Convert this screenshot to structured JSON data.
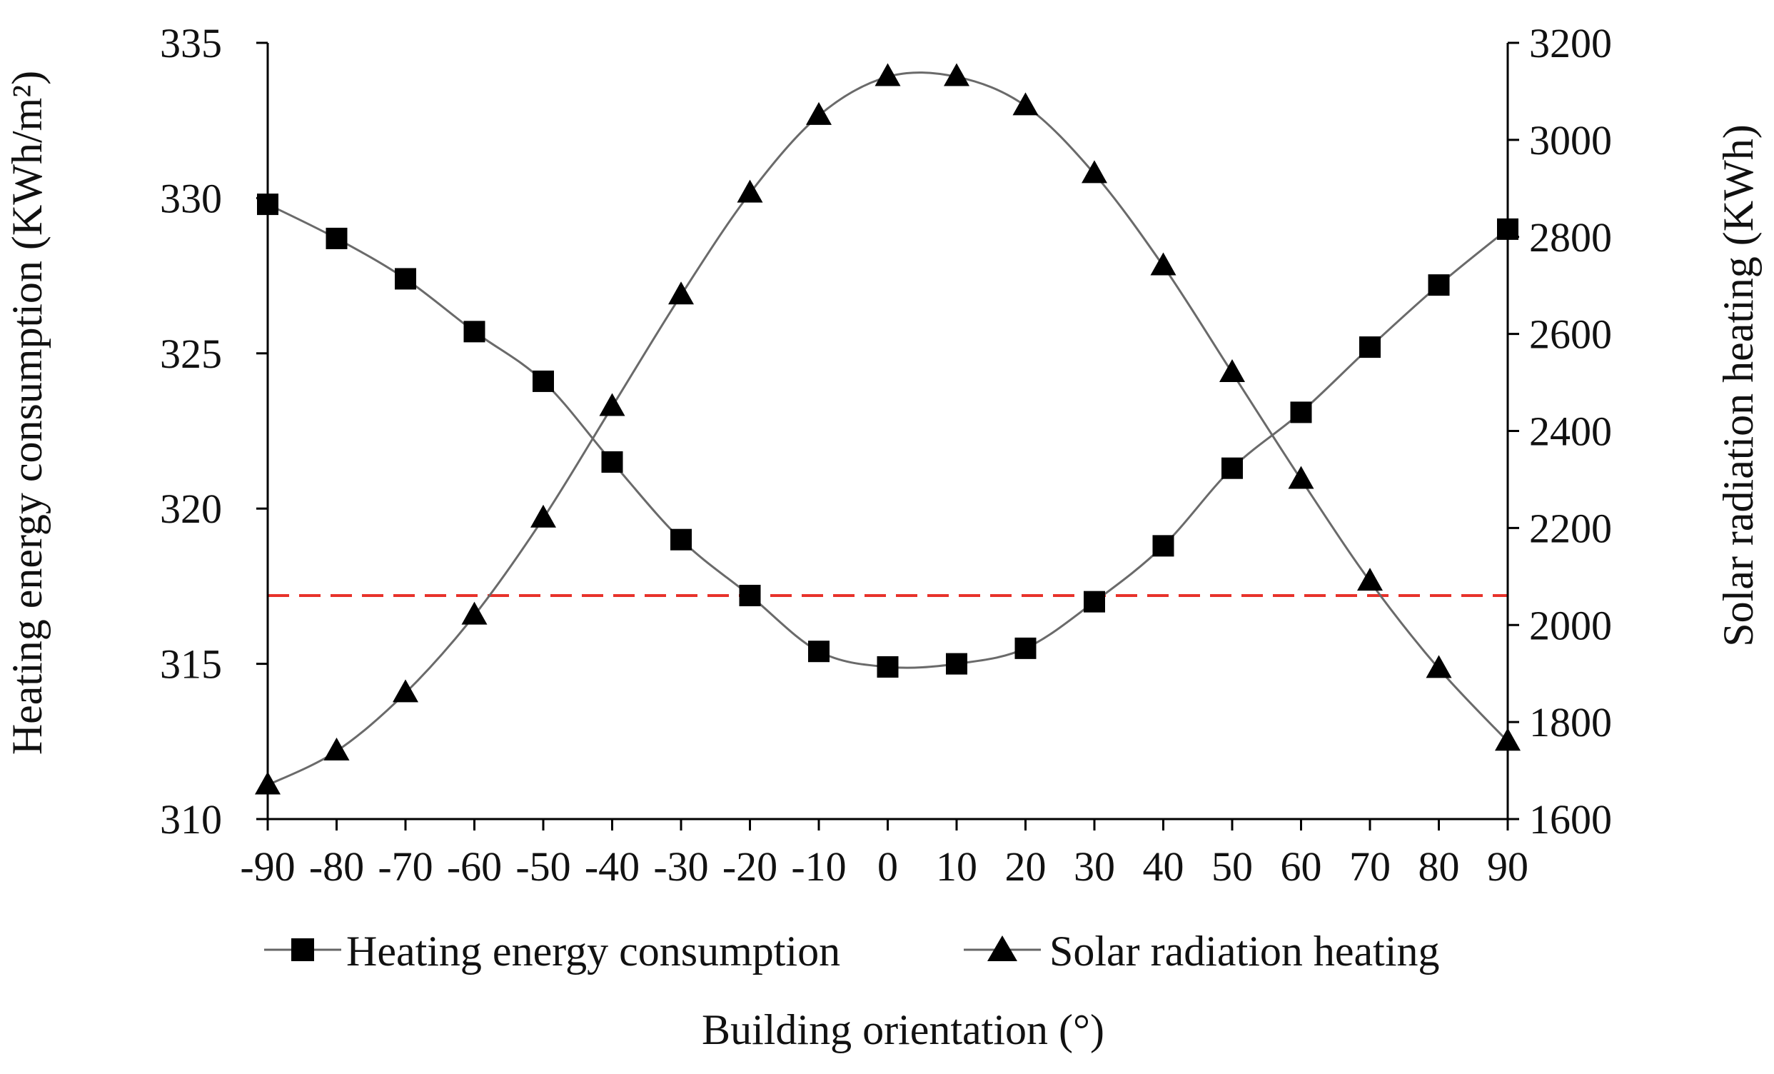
{
  "chart_data": {
    "type": "line",
    "title": "",
    "xlabel": "Building orientation (°)",
    "ylabel": "Heating energy consumption (KWh/m²)",
    "y2label": "Solar radiation heating (KWh)",
    "x": [
      -90,
      -80,
      -70,
      -60,
      -50,
      -40,
      -30,
      -20,
      -10,
      0,
      10,
      20,
      30,
      40,
      50,
      60,
      70,
      80,
      90
    ],
    "x_tick_labels": [
      "-90",
      "-80",
      "-70",
      "-60",
      "-50",
      "-40",
      "-30",
      "-20",
      "-10",
      "0",
      "10",
      "20",
      "30",
      "40",
      "50",
      "60",
      "70",
      "80",
      "90"
    ],
    "ylim": [
      310,
      335
    ],
    "y_ticks": [
      "310",
      "315",
      "320",
      "325",
      "330",
      "335"
    ],
    "y2lim": [
      1600,
      3200
    ],
    "y2_ticks": [
      "1600",
      "1800",
      "2000",
      "2200",
      "2400",
      "2600",
      "2800",
      "3000",
      "3200"
    ],
    "series": [
      {
        "name": "Heating energy consumption",
        "axis": "left",
        "marker": "square",
        "values": [
          329.8,
          328.7,
          327.4,
          325.7,
          324.1,
          321.5,
          319.0,
          317.2,
          315.4,
          314.9,
          315.0,
          315.5,
          317.0,
          318.8,
          321.3,
          323.1,
          325.2,
          327.2,
          329.0
        ]
      },
      {
        "name": "Solar radiation heating",
        "axis": "right",
        "marker": "triangle",
        "values": [
          1670,
          1740,
          1860,
          2020,
          2220,
          2450,
          2680,
          2890,
          3050,
          3130,
          3130,
          3070,
          2930,
          2740,
          2520,
          2300,
          2090,
          1910,
          1760
        ]
      }
    ],
    "reference_line": {
      "axis": "left",
      "value": 317.2,
      "style": "dashed",
      "color": "#e8322b"
    },
    "legend": {
      "position": "bottom",
      "entries": [
        "Heating energy consumption",
        "Solar radiation heating"
      ]
    },
    "grid": false
  }
}
